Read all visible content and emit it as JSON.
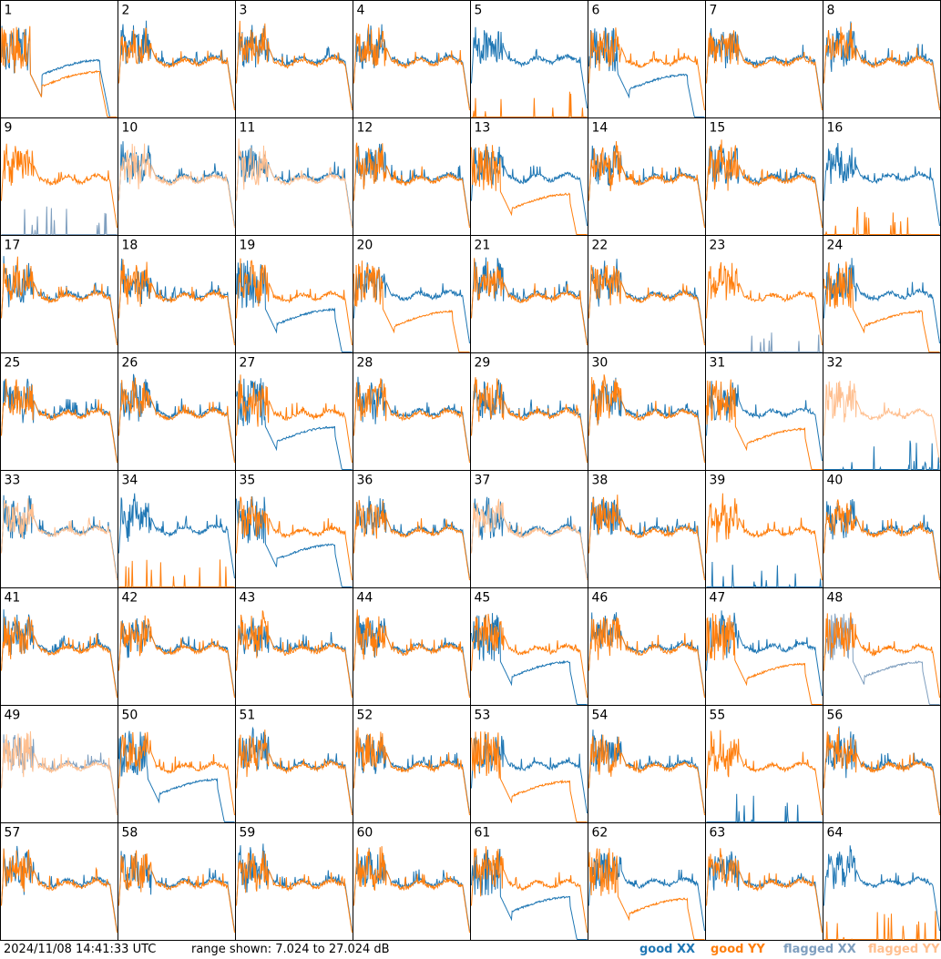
{
  "timestamp": "2024/11/08 14:41:33 UTC",
  "range_text": "range shown: 7.024 to 27.024 dB",
  "legend": {
    "good_xx": "good XX",
    "good_yy": "good YY",
    "flagged_xx": "flagged XX",
    "flagged_yy": "flagged YY"
  },
  "colors": {
    "good_xx": "#1f77b4",
    "good_yy": "#ff7f0e",
    "flagged_xx": "#7f9fbf",
    "flagged_yy": "#ffbf8f"
  },
  "chart_data": {
    "type": "line",
    "title": "",
    "grid_rows": 8,
    "grid_cols": 8,
    "ylim": [
      7.024,
      27.024
    ],
    "units": "dB",
    "panel_labels": [
      "1",
      "2",
      "3",
      "4",
      "5",
      "6",
      "7",
      "8",
      "9",
      "10",
      "11",
      "12",
      "13",
      "14",
      "15",
      "16",
      "17",
      "18",
      "19",
      "20",
      "21",
      "22",
      "23",
      "24",
      "25",
      "26",
      "27",
      "28",
      "29",
      "30",
      "31",
      "32",
      "33",
      "34",
      "35",
      "36",
      "37",
      "38",
      "39",
      "40",
      "41",
      "42",
      "43",
      "44",
      "45",
      "46",
      "47",
      "48",
      "49",
      "50",
      "51",
      "52",
      "53",
      "54",
      "55",
      "56",
      "57",
      "58",
      "59",
      "60",
      "61",
      "62",
      "63",
      "64"
    ],
    "series_names": [
      "good XX",
      "good YY",
      "flagged XX",
      "flagged YY"
    ],
    "flags": {
      "9": [
        "flagged XX"
      ],
      "10": [
        "flagged YY"
      ],
      "11": [
        "flagged YY"
      ],
      "23": [
        "flagged XX"
      ],
      "32": [
        "flagged YY"
      ],
      "33": [
        "flagged YY"
      ],
      "37": [
        "flagged YY"
      ],
      "48": [
        "flagged XX"
      ],
      "49": [
        "flagged XX",
        "flagged YY"
      ]
    },
    "anomalies": {
      "1": "low-both",
      "5": "dead-yy",
      "6": "low-xx",
      "9": "dead-xx",
      "13": "low-yy",
      "16": "dead-yy",
      "19": "low-xx",
      "20": "low-yy",
      "23": "dead-xx",
      "24": "low-yy",
      "27": "low-xx",
      "31": "low-yy",
      "32": "dead-xx",
      "34": "dead-yy",
      "35": "low-xx",
      "39": "dead-xx",
      "45": "low-xx",
      "47": "low-yy",
      "48": "low-xx",
      "50": "low-xx",
      "53": "low-yy",
      "55": "dead-xx",
      "61": "low-xx",
      "62": "low-yy",
      "64": "dead-yy"
    }
  }
}
